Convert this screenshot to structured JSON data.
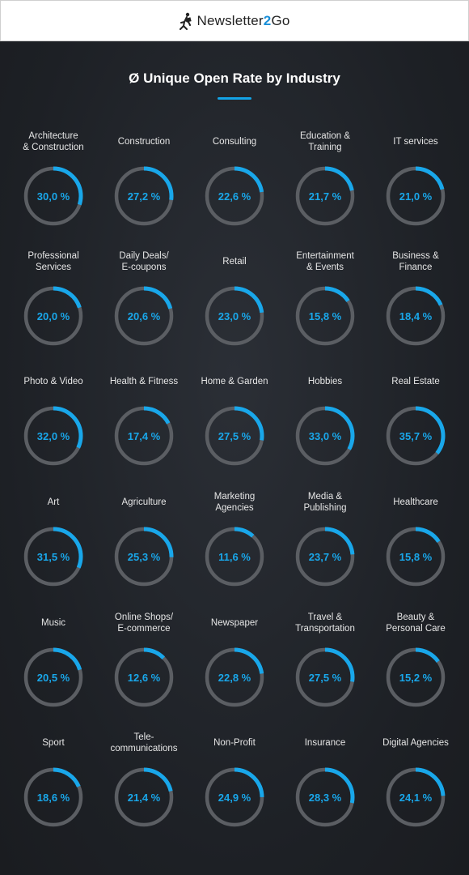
{
  "header": {
    "logo_text_main": "Newsletter",
    "logo_text_accent": "2",
    "logo_text_end": "Go",
    "logo_icon": "walking-figure-icon"
  },
  "title": "Ø Unique Open Rate by Industry",
  "colors": {
    "background": "#1f2227",
    "ring_track": "#5b5e63",
    "ring_fill": "#19a7ea",
    "value_text": "#19a7ea",
    "title_underline": "#13a3e6"
  },
  "chart_data": {
    "type": "radial-progress-grid",
    "title": "Ø Unique Open Rate by Industry",
    "unit": "%",
    "max": 100,
    "items": [
      {
        "label": "Architecture\n& Construction",
        "value": 30.0,
        "display": "30,0 %"
      },
      {
        "label": "Construction",
        "value": 27.2,
        "display": "27,2 %"
      },
      {
        "label": "Consulting",
        "value": 22.6,
        "display": "22,6 %"
      },
      {
        "label": "Education &\nTraining",
        "value": 21.7,
        "display": "21,7 %"
      },
      {
        "label": "IT services",
        "value": 21.0,
        "display": "21,0 %"
      },
      {
        "label": "Professional\nServices",
        "value": 20.0,
        "display": "20,0 %"
      },
      {
        "label": "Daily Deals/\nE-coupons",
        "value": 20.6,
        "display": "20,6 %"
      },
      {
        "label": "Retail",
        "value": 23.0,
        "display": "23,0 %"
      },
      {
        "label": "Entertainment\n& Events",
        "value": 15.8,
        "display": "15,8 %"
      },
      {
        "label": "Business &\nFinance",
        "value": 18.4,
        "display": "18,4 %"
      },
      {
        "label": "Photo & Video",
        "value": 32.0,
        "display": "32,0 %"
      },
      {
        "label": "Health & Fitness",
        "value": 17.4,
        "display": "17,4 %"
      },
      {
        "label": "Home & Garden",
        "value": 27.5,
        "display": "27,5 %"
      },
      {
        "label": "Hobbies",
        "value": 33.0,
        "display": "33,0 %"
      },
      {
        "label": "Real Estate",
        "value": 35.7,
        "display": "35,7 %"
      },
      {
        "label": "Art",
        "value": 31.5,
        "display": "31,5 %"
      },
      {
        "label": "Agriculture",
        "value": 25.3,
        "display": "25,3 %"
      },
      {
        "label": "Marketing\nAgencies",
        "value": 11.6,
        "display": "11,6 %"
      },
      {
        "label": "Media &\nPublishing",
        "value": 23.7,
        "display": "23,7 %"
      },
      {
        "label": "Healthcare",
        "value": 15.8,
        "display": "15,8 %"
      },
      {
        "label": "Music",
        "value": 20.5,
        "display": "20,5 %"
      },
      {
        "label": "Online Shops/\nE-commerce",
        "value": 12.6,
        "display": "12,6 %"
      },
      {
        "label": "Newspaper",
        "value": 22.8,
        "display": "22,8 %"
      },
      {
        "label": "Travel &\nTransportation",
        "value": 27.5,
        "display": "27,5 %"
      },
      {
        "label": "Beauty &\nPersonal Care",
        "value": 15.2,
        "display": "15,2 %"
      },
      {
        "label": "Sport",
        "value": 18.6,
        "display": "18,6 %"
      },
      {
        "label": "Tele-\ncommunications",
        "value": 21.4,
        "display": "21,4 %"
      },
      {
        "label": "Non-Profit",
        "value": 24.9,
        "display": "24,9 %"
      },
      {
        "label": "Insurance",
        "value": 28.3,
        "display": "28,3 %"
      },
      {
        "label": "Digital Agencies",
        "value": 24.1,
        "display": "24,1 %"
      }
    ]
  }
}
